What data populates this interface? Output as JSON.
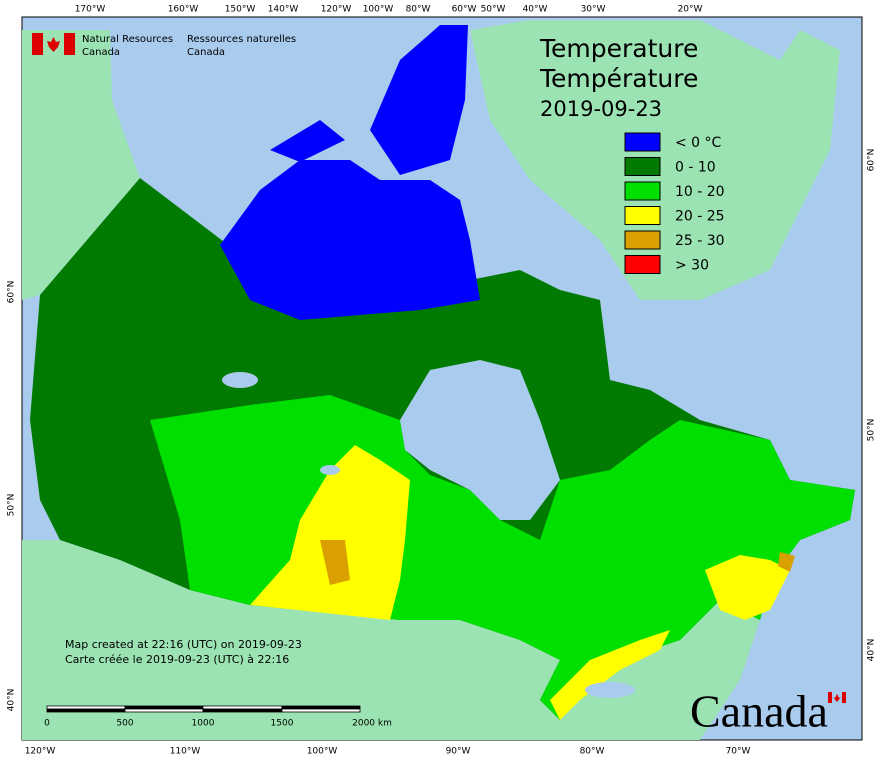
{
  "header": {
    "org_en": [
      "Natural Resources",
      "Canada"
    ],
    "org_fr": [
      "Ressources naturelles",
      "Canada"
    ]
  },
  "title": [
    "Temperature",
    "Température",
    "2019-09-23"
  ],
  "legend": [
    {
      "label": "< 0 °C",
      "color": "#0000ff"
    },
    {
      "label": "0 - 10",
      "color": "#007a00"
    },
    {
      "label": "10 - 20",
      "color": "#00e000"
    },
    {
      "label": "20 - 25",
      "color": "#ffff00"
    },
    {
      "label": "25 - 30",
      "color": "#d9a000"
    },
    {
      "label": "> 30",
      "color": "#ff0000"
    }
  ],
  "notes": [
    "Map created at 22:16 (UTC) on 2019-09-23",
    "Carte créée le 2019-09-23 (UTC) à 22:16"
  ],
  "scale_bar": [
    "0",
    "500",
    "1000",
    "1500",
    "2000 km"
  ],
  "graticule": {
    "top": [
      "170°W",
      "160°W",
      "150°W",
      "140°W",
      "120°W",
      "100°W",
      "80°W",
      "60°W",
      "50°W",
      "40°W",
      "30°W",
      "20°W"
    ],
    "bottom": [
      "120°W",
      "110°W",
      "100°W",
      "90°W",
      "80°W",
      "70°W"
    ],
    "left": [
      "60°N",
      "50°N",
      "40°N"
    ],
    "right": [
      "60°N",
      "50°N",
      "40°N"
    ]
  },
  "wordmark": "Canada"
}
